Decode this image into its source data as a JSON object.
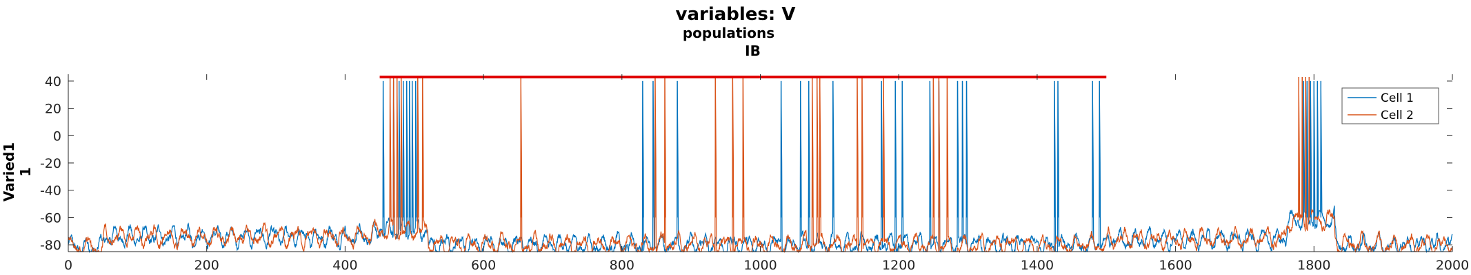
{
  "chart_data": {
    "type": "line",
    "title": "variables: V",
    "subtitle_1": "populations",
    "subtitle_2": "IB",
    "ylabel_1": "Varied1",
    "ylabel_2": "1",
    "xlabel": "",
    "xlim": [
      0,
      2000
    ],
    "ylim": [
      -85,
      45
    ],
    "x_ticks": [
      0,
      200,
      400,
      600,
      800,
      1000,
      1200,
      1400,
      1600,
      1800,
      2000
    ],
    "y_ticks": [
      -80,
      -60,
      -40,
      -20,
      0,
      20,
      40
    ],
    "legend_position": "top-right",
    "colors": {
      "cell1": "#0072BD",
      "cell2": "#D95319",
      "bar": "#E00000"
    },
    "series": [
      {
        "name": "Cell 1",
        "baseline_range": [
          -85,
          -60
        ],
        "spike_peak": 40
      },
      {
        "name": "Cell 2",
        "baseline_range": [
          -85,
          -60
        ],
        "spike_peak": 43
      }
    ],
    "annotation_bar": {
      "x_start": 450,
      "x_end": 1500,
      "y": 43
    },
    "spike_times_cell1": [
      455,
      470,
      478,
      484,
      489,
      493,
      497,
      502,
      830,
      845,
      880,
      1030,
      1058,
      1070,
      1105,
      1175,
      1195,
      1205,
      1245,
      1258,
      1285,
      1292,
      1298,
      1425,
      1430,
      1480,
      1490,
      1785,
      1790,
      1795,
      1800,
      1805,
      1810
    ],
    "spike_times_cell2": [
      465,
      470,
      475,
      481,
      505,
      512,
      654,
      848,
      862,
      935,
      960,
      975,
      1075,
      1082,
      1086,
      1140,
      1147,
      1178,
      1250,
      1258,
      1270,
      1778,
      1783,
      1788,
      1793
    ]
  }
}
